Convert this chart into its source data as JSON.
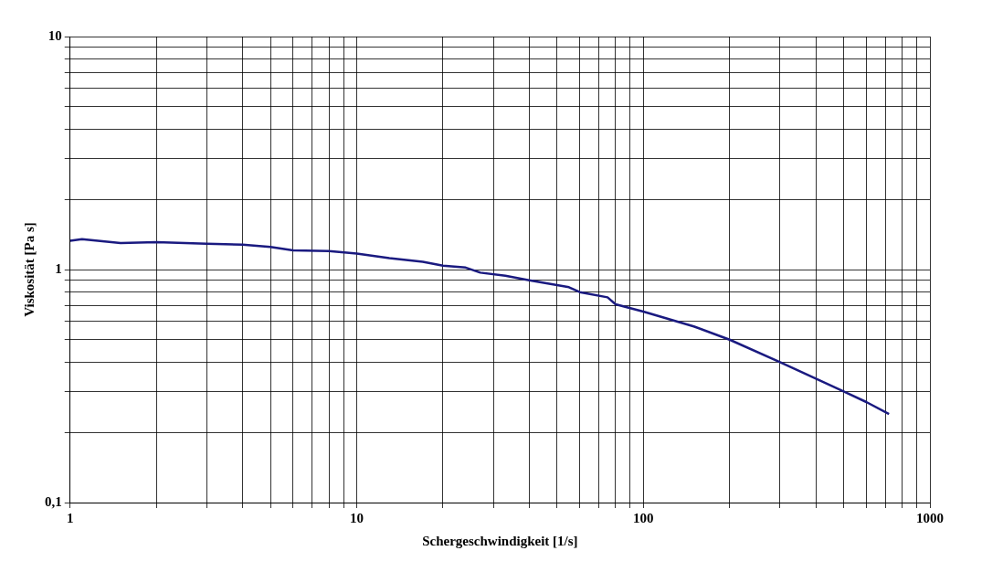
{
  "chart_data": {
    "type": "line",
    "xlabel": "Schergeschwindigkeit [1/s]",
    "ylabel": "Viskosität [Pa s]",
    "log": "xy",
    "grid": true,
    "legend": false,
    "marker": "none",
    "line_style": "solid",
    "xlim": [
      1,
      1000
    ],
    "ylim": [
      0.1,
      10
    ],
    "xticks": [
      1,
      {
        "value": 2,
        "label": null
      },
      {
        "value": 3,
        "label": null
      },
      {
        "value": 4,
        "label": null
      },
      {
        "value": 5,
        "label": null
      },
      {
        "value": 6,
        "label": null
      },
      {
        "value": 7,
        "label": null
      },
      {
        "value": 8,
        "label": null
      },
      {
        "value": 9,
        "label": null
      },
      10,
      {
        "value": 20,
        "label": null
      },
      {
        "value": 30,
        "label": null
      },
      {
        "value": 40,
        "label": null
      },
      {
        "value": 50,
        "label": null
      },
      {
        "value": 60,
        "label": null
      },
      {
        "value": 70,
        "label": null
      },
      {
        "value": 80,
        "label": null
      },
      {
        "value": 90,
        "label": null
      },
      100,
      {
        "value": 200,
        "label": null
      },
      {
        "value": 300,
        "label": null
      },
      {
        "value": 400,
        "label": null
      },
      {
        "value": 500,
        "label": null
      },
      {
        "value": 600,
        "label": null
      },
      {
        "value": 700,
        "label": null
      },
      {
        "value": 800,
        "label": null
      },
      {
        "value": 900,
        "label": null
      },
      1000
    ],
    "yticks": [
      {
        "value": 0.1,
        "label": "0,1"
      },
      {
        "value": 0.2,
        "label": null
      },
      {
        "value": 0.3,
        "label": null
      },
      {
        "value": 0.4,
        "label": null
      },
      {
        "value": 0.5,
        "label": null
      },
      {
        "value": 0.6,
        "label": null
      },
      {
        "value": 0.7,
        "label": null
      },
      {
        "value": 0.8,
        "label": null
      },
      {
        "value": 0.9,
        "label": null
      },
      1,
      {
        "value": 2,
        "label": null
      },
      {
        "value": 3,
        "label": null
      },
      {
        "value": 4,
        "label": null
      },
      {
        "value": 5,
        "label": null
      },
      {
        "value": 6,
        "label": null
      },
      {
        "value": 7,
        "label": null
      },
      {
        "value": 8,
        "label": null
      },
      {
        "value": 9,
        "label": null
      },
      10
    ],
    "x": [
      1,
      1.1,
      1.5,
      2,
      3,
      4,
      5,
      6,
      8,
      10,
      13,
      17,
      20,
      24,
      27,
      33,
      40,
      55,
      60,
      75,
      80,
      100,
      150,
      200,
      300,
      400,
      500,
      600,
      720
    ],
    "series": [
      {
        "color": "#1a1a80",
        "values": [
          1.33,
          1.35,
          1.3,
          1.31,
          1.29,
          1.28,
          1.25,
          1.21,
          1.2,
          1.17,
          1.12,
          1.08,
          1.04,
          1.02,
          0.97,
          0.94,
          0.9,
          0.84,
          0.8,
          0.76,
          0.71,
          0.66,
          0.57,
          0.5,
          0.4,
          0.34,
          0.3,
          0.27,
          0.24
        ]
      }
    ]
  }
}
